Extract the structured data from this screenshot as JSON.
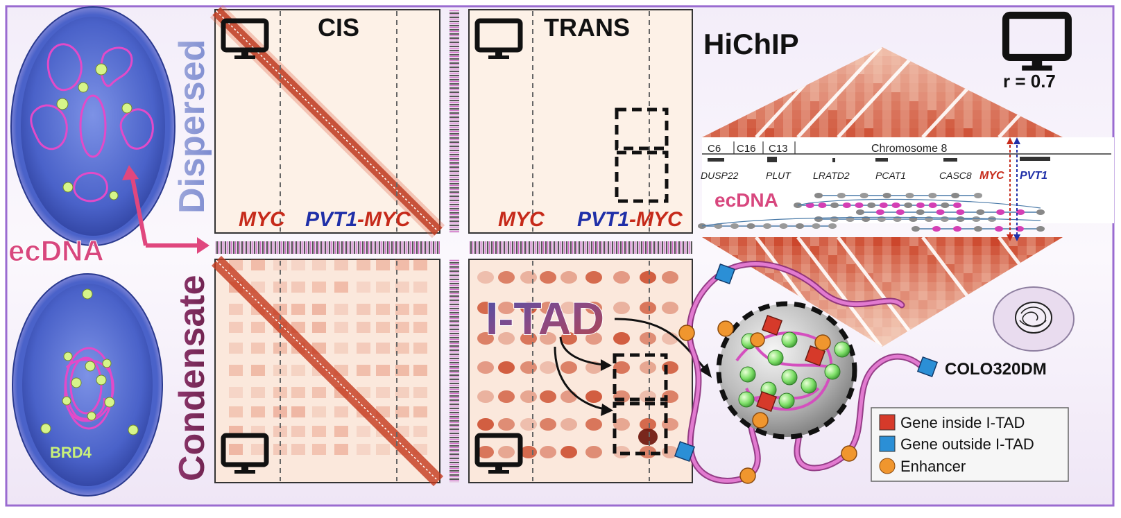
{
  "labels": {
    "dispersed": "Dispersed",
    "condensate": "Condensate",
    "ecdna_left": "ecDNA",
    "brd4": "BRD4",
    "cis": "CIS",
    "trans": "TRANS",
    "myc": "MYC",
    "pvt1": "PVT1",
    "dash_myc": "-MYC",
    "itad": "I-TAD",
    "hichip": "HiChIP",
    "r_value": "r = 0.7",
    "chromosome": "Chromosome 8",
    "ecdna_track": "ecDNA",
    "cell_line": "COLO320DM"
  },
  "chrom_contigs": [
    "C6",
    "C16",
    "C13"
  ],
  "genes": [
    "DUSP22",
    "PLUT",
    "LRATD2",
    "PCAT1",
    "CASC8",
    "MYC",
    "PVT1"
  ],
  "legend": [
    {
      "label": "Gene inside I-TAD",
      "marker": "square",
      "color": "#d63a2a"
    },
    {
      "label": "Gene outside I-TAD",
      "marker": "square",
      "color": "#2b8fd6"
    },
    {
      "label": "Enhancer",
      "marker": "circle",
      "color": "#f0962e"
    }
  ],
  "colors": {
    "border": "#9a6bd0",
    "heat_dark": "#a8230f",
    "heat_mid": "#e06040",
    "heat_bg": "#fdf0e6",
    "myc_red": "#c62a1a",
    "pvt1_blue": "#1f2fa8",
    "magenta": "#d43fb4",
    "nucleus_blue": "#4a62c9",
    "dispersed_label": "#8f9bd3",
    "condensate_label": "#7a2a5a",
    "ecdna_pink": "#d8477e",
    "brd4_green": "#c9f07a",
    "gene_inside": "#d63a2a",
    "gene_outside": "#2b8fd6",
    "enhancer": "#f0962e"
  },
  "icons": [
    "monitor-icon",
    "arrow-icon",
    "dashed-box",
    "cell-icon"
  ]
}
